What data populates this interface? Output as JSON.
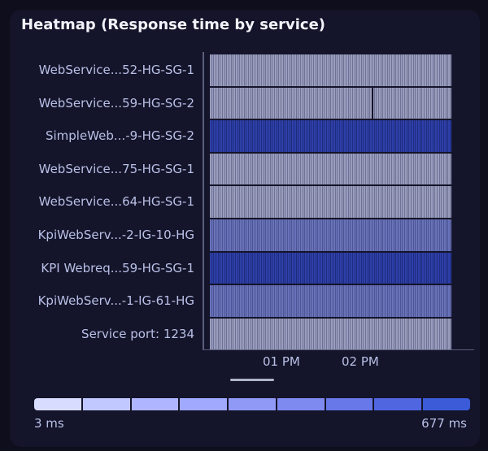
{
  "chart_data": {
    "type": "heatmap",
    "title": "Heatmap (Response time by service)",
    "rows": [
      {
        "label": "WebService...52-HG-SG-1",
        "level": 0.2
      },
      {
        "label": "WebService...59-HG-SG-2",
        "level": 0.2,
        "gap_at": 0.67
      },
      {
        "label": "SimpleWeb...-9-HG-SG-2",
        "level": 0.95
      },
      {
        "label": "WebService...75-HG-SG-1",
        "level": 0.2
      },
      {
        "label": "WebService...64-HG-SG-1",
        "level": 0.2
      },
      {
        "label": "KpiWebServ...-2-IG-10-HG",
        "level": 0.55
      },
      {
        "label": "KPI Webreq...59-HG-SG-1",
        "level": 0.95
      },
      {
        "label": "KpiWebServ...-1-IG-61-HG",
        "level": 0.55
      },
      {
        "label": "Service port: 1234",
        "level": 0.2
      }
    ],
    "x_ticks": [
      "01 PM",
      "02 PM"
    ],
    "legend": {
      "min_label": "3 ms",
      "max_label": "677 ms",
      "colors": [
        "#d8ddff",
        "#c1c7ff",
        "#b0b5ff",
        "#a1a9ff",
        "#9199f6",
        "#7f8af0",
        "#6878e8",
        "#5066e1",
        "#3b5bd8"
      ]
    }
  },
  "row_colors": {
    "low": [
      "#9a9dbc",
      "#6e7296"
    ],
    "mid": [
      "#6a72b8",
      "#4c5596"
    ],
    "high": [
      "#2e40a8",
      "#1f2c80"
    ]
  }
}
